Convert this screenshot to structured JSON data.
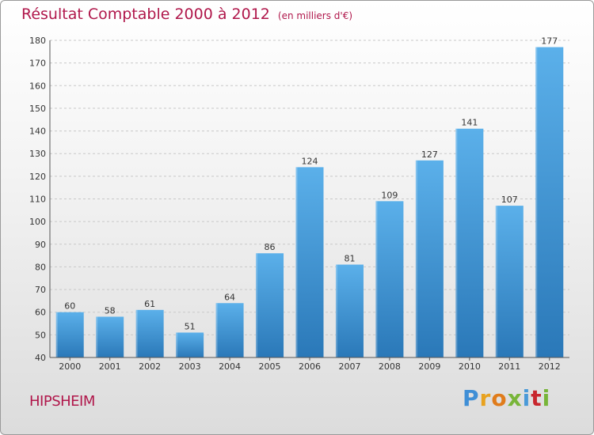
{
  "header": {
    "title": "Résultat Comptable 2000 à 2012",
    "subtitle": "(en milliers d'€)"
  },
  "commune": "HIPSHEIM",
  "logo": {
    "letters": [
      "P",
      "r",
      "o",
      "x",
      "i",
      "t",
      "i"
    ]
  },
  "colors": {
    "title": "#b0174b",
    "bar_top": "#5bb0ea",
    "bar_bottom": "#2a78b8",
    "grid": "#c8c8c8"
  },
  "chart_data": {
    "type": "bar",
    "categories": [
      "2000",
      "2001",
      "2002",
      "2003",
      "2004",
      "2005",
      "2006",
      "2007",
      "2008",
      "2009",
      "2010",
      "2011",
      "2012"
    ],
    "values": [
      60,
      58,
      61,
      51,
      64,
      86,
      124,
      81,
      109,
      127,
      141,
      107,
      177
    ],
    "title": "Résultat Comptable 2000 à 2012",
    "subtitle": "(en milliers d'€)",
    "ylim": [
      40,
      180
    ],
    "yticks": [
      40,
      50,
      60,
      70,
      80,
      90,
      100,
      110,
      120,
      130,
      140,
      150,
      160,
      170,
      180
    ],
    "grid": true,
    "data_labels": true
  }
}
